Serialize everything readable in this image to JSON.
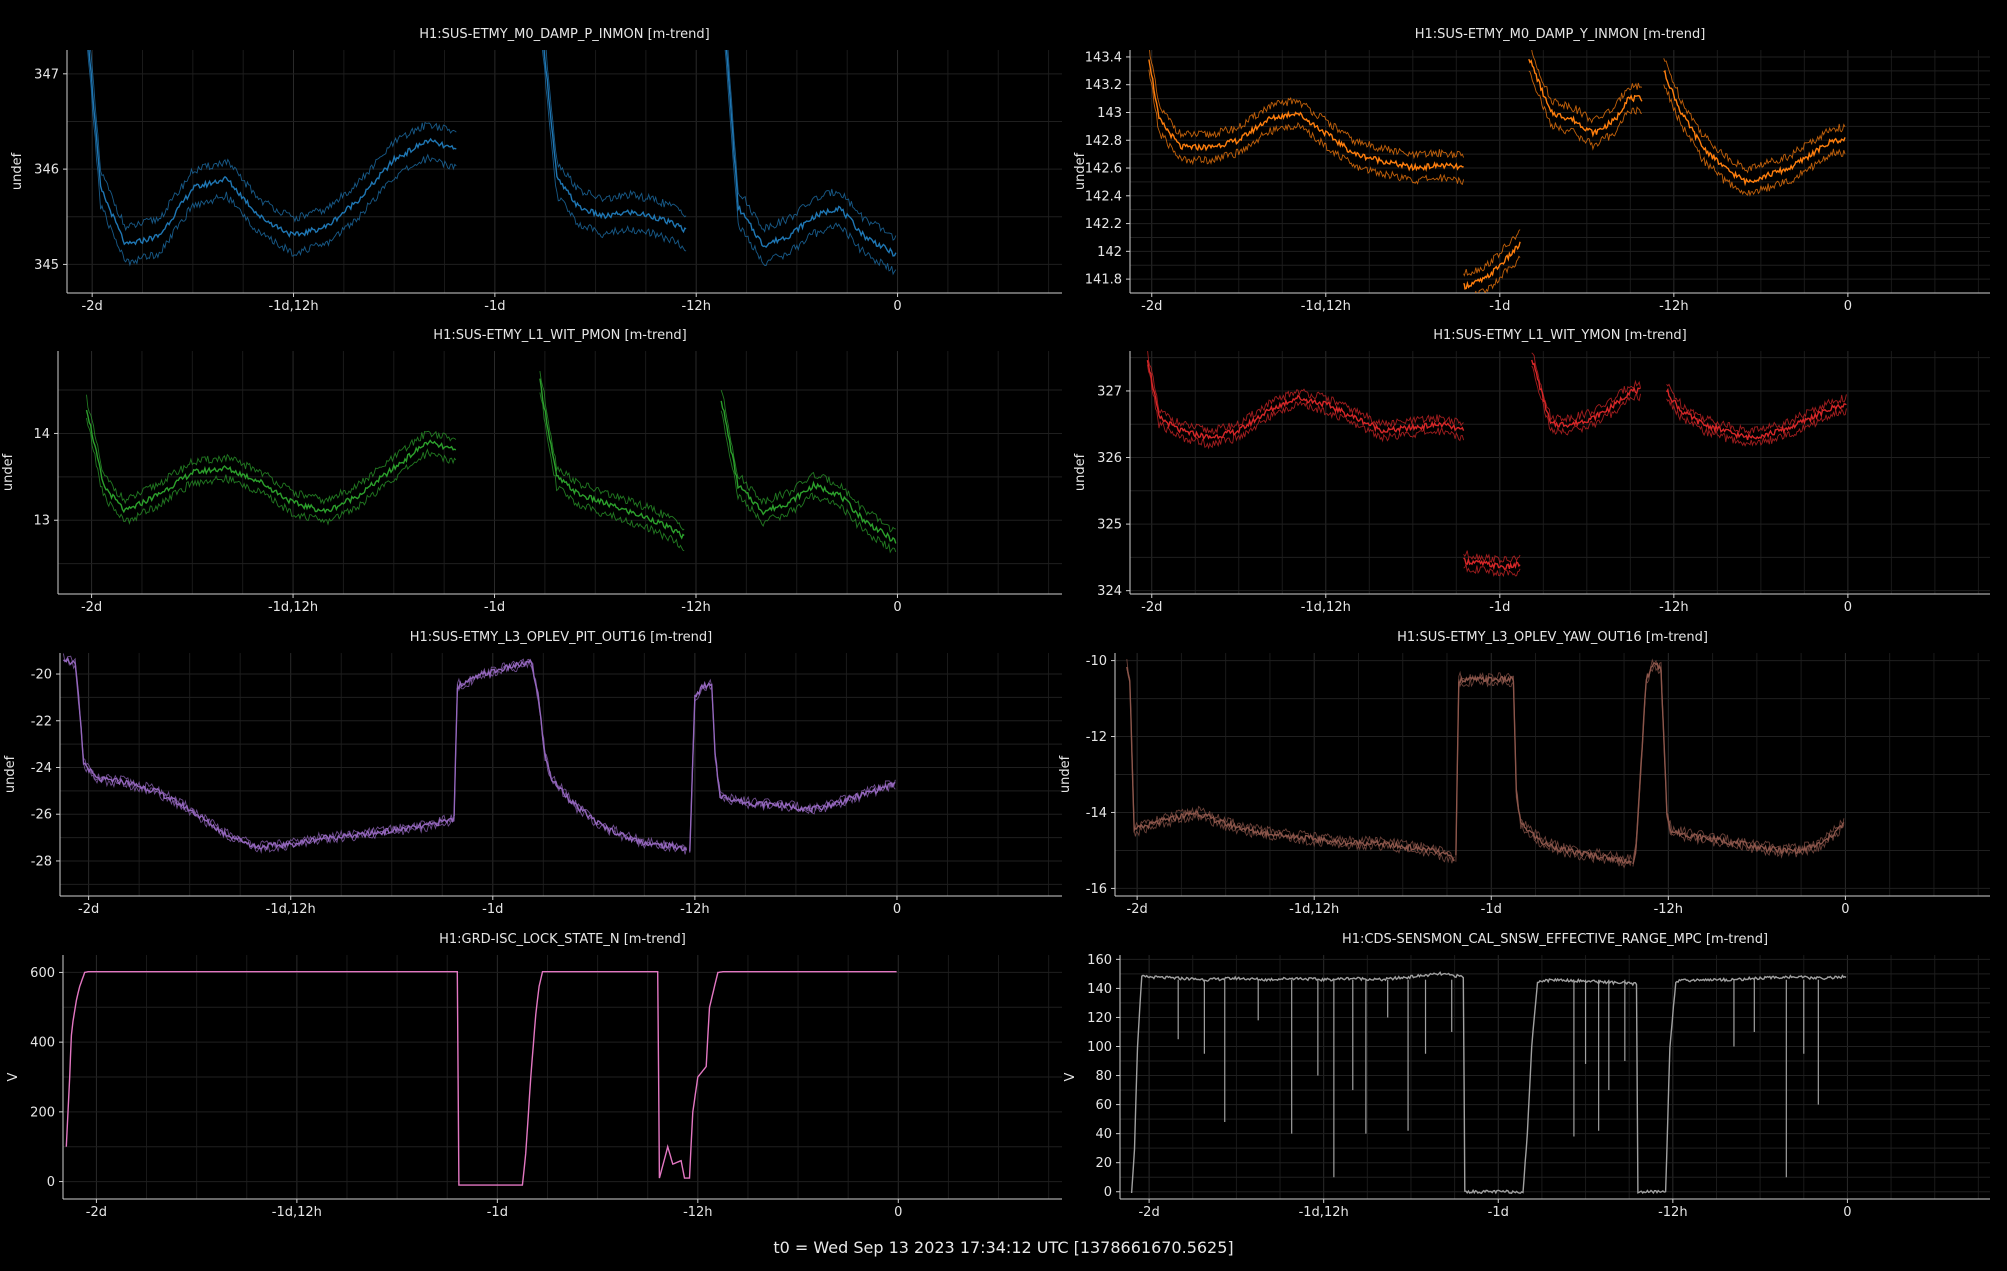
{
  "footer": "t0 = Wed Sep 13 2023 17:34:12 UTC [1378661670.5625]",
  "chart_data": [
    {
      "type": "line",
      "title": "H1:SUS-ETMY_M0_DAMP_P_INMON [m-trend]",
      "ylabel": "undef",
      "color": "#1f77b4",
      "ylim": [
        344.7,
        347.25
      ],
      "yticks": [
        345,
        346,
        347
      ],
      "x_hours_range": [
        -49.5,
        9.8
      ],
      "xtick_labels": [
        "-2d",
        "-1d,12h",
        "-1d",
        "-12h",
        "0"
      ],
      "xtick_hours": [
        -48,
        -36,
        -24,
        -12,
        0
      ],
      "band": 0.18,
      "segments": [
        {
          "x": [
            -48.3,
            -47.5,
            -46,
            -44,
            -42,
            -40,
            -38,
            -36,
            -34,
            -32,
            -30,
            -28,
            -26.3
          ],
          "y": [
            347.5,
            345.8,
            345.2,
            345.3,
            345.8,
            345.9,
            345.5,
            345.3,
            345.4,
            345.7,
            346.1,
            346.3,
            346.2
          ]
        },
        {
          "x": [
            -21.2,
            -20.3,
            -19,
            -17.5,
            -16,
            -14.5,
            -13,
            -12.6
          ],
          "y": [
            347.5,
            345.9,
            345.6,
            345.5,
            345.55,
            345.5,
            345.4,
            345.35
          ]
        },
        {
          "x": [
            -10.3,
            -9.5,
            -8,
            -6.5,
            -5,
            -3.5,
            -2,
            -0.1
          ],
          "y": [
            347.5,
            345.6,
            345.2,
            345.3,
            345.5,
            345.6,
            345.3,
            345.1
          ]
        }
      ]
    },
    {
      "type": "line",
      "title": "H1:SUS-ETMY_M0_DAMP_Y_INMON [m-trend]",
      "ylabel": "undef",
      "color": "#ff7f0e",
      "ylim": [
        141.7,
        143.45
      ],
      "yticks": [
        141.8,
        142,
        142.2,
        142.4,
        142.6,
        142.8,
        143,
        143.2,
        143.4
      ],
      "x_hours_range": [
        -49.5,
        9.8
      ],
      "xtick_labels": [
        "-2d",
        "-1d,12h",
        "-1d",
        "-12h",
        "0"
      ],
      "xtick_hours": [
        -48,
        -36,
        -24,
        -12,
        0
      ],
      "band": 0.09,
      "segments": [
        {
          "x": [
            -48.2,
            -47.5,
            -46,
            -44,
            -42,
            -40,
            -38,
            -36,
            -34,
            -32,
            -30,
            -28,
            -26.5
          ],
          "y": [
            143.4,
            142.95,
            142.75,
            142.75,
            142.8,
            142.95,
            143.0,
            142.85,
            142.7,
            142.65,
            142.6,
            142.62,
            142.6
          ]
        },
        {
          "x": [
            -26.5,
            -26.4,
            -25,
            -23.5,
            -22.6
          ],
          "y": [
            141.75,
            141.75,
            141.8,
            141.95,
            142.05
          ]
        },
        {
          "x": [
            -22.0,
            -20.5,
            -19,
            -17.5,
            -16,
            -15.2,
            -14.2
          ],
          "y": [
            143.4,
            143.0,
            142.95,
            142.85,
            142.95,
            143.1,
            143.1
          ]
        },
        {
          "x": [
            -12.7,
            -11.5,
            -10,
            -8.5,
            -7,
            -5.5,
            -4,
            -2.5,
            -1,
            -0.2
          ],
          "y": [
            143.3,
            143.0,
            142.75,
            142.6,
            142.5,
            142.55,
            142.6,
            142.7,
            142.8,
            142.8
          ]
        }
      ]
    },
    {
      "type": "line",
      "title": "H1:SUS-ETMY_L1_WIT_PMON [m-trend]",
      "ylabel": "undef",
      "color": "#2ca02c",
      "ylim": [
        12.15,
        14.95
      ],
      "yticks": [
        13,
        14
      ],
      "x_hours_range": [
        -50.0,
        9.8
      ],
      "xtick_labels": [
        "-2d",
        "-1d,12h",
        "-1d",
        "-12h",
        "0"
      ],
      "xtick_hours": [
        -48,
        -36,
        -24,
        -12,
        0
      ],
      "band": 0.12,
      "segments": [
        {
          "x": [
            -48.3,
            -47.3,
            -46,
            -44,
            -42,
            -40,
            -38,
            -36,
            -34,
            -32,
            -30,
            -28,
            -26.3
          ],
          "y": [
            14.3,
            13.4,
            13.1,
            13.3,
            13.55,
            13.6,
            13.45,
            13.2,
            13.1,
            13.3,
            13.6,
            13.9,
            13.8
          ]
        },
        {
          "x": [
            -21.3,
            -20.3,
            -19,
            -17.5,
            -16,
            -14.5,
            -13,
            -12.7
          ],
          "y": [
            14.6,
            13.5,
            13.3,
            13.2,
            13.1,
            13.0,
            12.85,
            12.8
          ]
        },
        {
          "x": [
            -10.5,
            -9.5,
            -8,
            -6.5,
            -5,
            -3.5,
            -2,
            -0.1
          ],
          "y": [
            14.4,
            13.4,
            13.1,
            13.2,
            13.4,
            13.3,
            13.0,
            12.75
          ]
        }
      ]
    },
    {
      "type": "line",
      "title": "H1:SUS-ETMY_L1_WIT_YMON [m-trend]",
      "ylabel": "undef",
      "color": "#d62728",
      "ylim": [
        323.95,
        327.6
      ],
      "yticks": [
        324,
        325,
        326,
        327
      ],
      "x_hours_range": [
        -49.5,
        9.8
      ],
      "xtick_labels": [
        "-2d",
        "-1d,12h",
        "-1d",
        "-12h",
        "0"
      ],
      "xtick_hours": [
        -48,
        -36,
        -24,
        -12,
        0
      ],
      "band": 0.1,
      "segments": [
        {
          "x": [
            -48.3,
            -47.5,
            -46,
            -44,
            -42,
            -40,
            -38,
            -36,
            -34,
            -32,
            -30,
            -28,
            -26.5
          ],
          "y": [
            327.5,
            326.6,
            326.4,
            326.3,
            326.4,
            326.7,
            326.9,
            326.8,
            326.6,
            326.4,
            326.45,
            326.5,
            326.4
          ]
        },
        {
          "x": [
            -26.5,
            -25,
            -23.5,
            -22.6
          ],
          "y": [
            324.45,
            324.4,
            324.35,
            324.4
          ]
        },
        {
          "x": [
            -21.8,
            -20.5,
            -19,
            -17.5,
            -16,
            -15,
            -14.3
          ],
          "y": [
            327.5,
            326.5,
            326.5,
            326.6,
            326.8,
            327.0,
            327.0
          ]
        },
        {
          "x": [
            -12.5,
            -11.5,
            -10,
            -8.5,
            -7,
            -5.5,
            -4,
            -2.5,
            -1,
            -0.1
          ],
          "y": [
            327.0,
            326.7,
            326.5,
            326.4,
            326.3,
            326.35,
            326.45,
            326.6,
            326.75,
            326.8
          ]
        }
      ]
    },
    {
      "type": "line",
      "title": "H1:SUS-ETMY_L3_OPLEV_PIT_OUT16 [m-trend]",
      "ylabel": "undef",
      "color": "#9467bd",
      "ylim": [
        -29.5,
        -19.1
      ],
      "yticks": [
        -28,
        -26,
        -24,
        -22,
        -20
      ],
      "x_hours_range": [
        -49.7,
        9.8
      ],
      "xtick_labels": [
        "-2d",
        "-1d,12h",
        "-1d",
        "-12h",
        "0"
      ],
      "xtick_hours": [
        -48,
        -36,
        -24,
        -12,
        0
      ],
      "band": 0.08,
      "segments": [
        {
          "x": [
            -49.5,
            -48.8,
            -48.6,
            -48.3,
            -47.5,
            -46,
            -44,
            -42,
            -40,
            -38,
            -36,
            -34,
            -32,
            -30,
            -28,
            -26.3
          ],
          "y": [
            -19.3,
            -19.6,
            -21.0,
            -23.8,
            -24.5,
            -24.6,
            -25.0,
            -25.8,
            -26.8,
            -27.4,
            -27.3,
            -27.0,
            -26.9,
            -26.7,
            -26.5,
            -26.2
          ]
        },
        {
          "x": [
            -26.3,
            -26.1,
            -24.5,
            -23,
            -21.7,
            -21.3,
            -20.9,
            -20.5,
            -19,
            -17.5,
            -16,
            -14.5,
            -13,
            -12.5
          ],
          "y": [
            -26.2,
            -20.5,
            -20.0,
            -19.7,
            -19.5,
            -21.0,
            -23.5,
            -24.5,
            -25.7,
            -26.5,
            -27.0,
            -27.3,
            -27.4,
            -27.5
          ]
        },
        {
          "x": [
            -12.3,
            -12.0,
            -11.5,
            -11.0,
            -10.8,
            -10.5,
            -9,
            -7,
            -5,
            -3,
            -1,
            -0.1
          ],
          "y": [
            -27.5,
            -21.0,
            -20.5,
            -20.5,
            -23.5,
            -25.2,
            -25.5,
            -25.6,
            -25.8,
            -25.4,
            -24.9,
            -24.7
          ]
        }
      ]
    },
    {
      "type": "line",
      "title": "H1:SUS-ETMY_L3_OPLEV_YAW_OUT16 [m-trend]",
      "ylabel": "undef",
      "color": "#8c564b",
      "ylim": [
        -16.2,
        -9.8
      ],
      "yticks": [
        -16,
        -14,
        -12,
        -10
      ],
      "x_hours_range": [
        -49.5,
        9.8
      ],
      "xtick_labels": [
        "-2d",
        "-1d,12h",
        "-1d",
        "-12h",
        "0"
      ],
      "xtick_hours": [
        -48,
        -36,
        -24,
        -12,
        0
      ],
      "band": 0.08,
      "segments": [
        {
          "x": [
            -48.7,
            -48.5,
            -48.2,
            -47.8,
            -46,
            -44,
            -42,
            -40,
            -38,
            -36,
            -34,
            -32,
            -30,
            -28,
            -26.5
          ],
          "y": [
            -10.1,
            -10.5,
            -14.5,
            -14.4,
            -14.2,
            -14.0,
            -14.3,
            -14.5,
            -14.6,
            -14.7,
            -14.8,
            -14.8,
            -14.9,
            -15.0,
            -15.2
          ]
        },
        {
          "x": [
            -26.4,
            -26.2,
            -25,
            -23.5,
            -22.5,
            -22.3,
            -22.0,
            -20.5,
            -19,
            -17.5,
            -16,
            -14.5
          ],
          "y": [
            -15.2,
            -10.5,
            -10.5,
            -10.5,
            -10.5,
            -13.5,
            -14.3,
            -14.8,
            -15.0,
            -15.1,
            -15.2,
            -15.3
          ]
        },
        {
          "x": [
            -14.4,
            -14.2,
            -13.5,
            -13.0,
            -12.5,
            -12.1,
            -11.8,
            -10.5,
            -9,
            -7.5,
            -6,
            -4.5,
            -3,
            -1.5,
            -0.1
          ],
          "y": [
            -15.3,
            -15.0,
            -10.5,
            -10.1,
            -10.2,
            -14.0,
            -14.5,
            -14.6,
            -14.7,
            -14.8,
            -14.9,
            -15.0,
            -15.0,
            -14.8,
            -14.3
          ]
        }
      ]
    },
    {
      "type": "line",
      "title": "H1:GRD-ISC_LOCK_STATE_N [m-trend]",
      "ylabel": "V",
      "color": "#e377c2",
      "ylim": [
        -50,
        650
      ],
      "yticks": [
        0,
        200,
        400,
        600
      ],
      "x_hours_range": [
        -50.0,
        9.8
      ],
      "xtick_labels": [
        "-2d",
        "-1d,12h",
        "-1d",
        "-12h",
        "0"
      ],
      "xtick_hours": [
        -48,
        -36,
        -24,
        -12,
        0
      ],
      "band": 0,
      "segments": [
        {
          "x": [
            -49.8,
            -49.6,
            -49.5,
            -49.4,
            -49.2,
            -49.0,
            -48.7,
            -48.5,
            -40,
            -30,
            -26.4,
            -26.3,
            -24.5,
            -23.0,
            -22.5,
            -22.3,
            -22.0,
            -21.7,
            -21.5,
            -21.3,
            -20.0,
            -16,
            -14.4,
            -14.3,
            -13.8,
            -13.5,
            -13.0,
            -12.8,
            -12.5,
            -12.3,
            -12.0,
            -11.5,
            -11.3,
            -11.0,
            -10.8,
            -10.5,
            -5,
            -0.1
          ],
          "y": [
            100,
            300,
            420,
            460,
            520,
            560,
            600,
            602,
            602,
            602,
            602,
            -10,
            -10,
            -10,
            -10,
            80,
            300,
            480,
            560,
            602,
            602,
            602,
            602,
            10,
            100,
            50,
            60,
            10,
            10,
            200,
            300,
            330,
            500,
            560,
            600,
            602,
            602,
            602
          ]
        }
      ]
    },
    {
      "type": "line",
      "title": "H1:CDS-SENSMON_CAL_SNSW_EFFECTIVE_RANGE_MPC [m-trend]",
      "ylabel": "V",
      "color": "#a0a0a0",
      "ylim": [
        -5,
        163
      ],
      "yticks": [
        0,
        20,
        40,
        60,
        80,
        100,
        120,
        140,
        160
      ],
      "x_hours_range": [
        -50.0,
        9.8
      ],
      "xtick_labels": [
        "-2d",
        "-1d,12h",
        "-1d",
        "-12h",
        "0"
      ],
      "xtick_hours": [
        -48,
        -36,
        -24,
        -12,
        0
      ],
      "band": 0,
      "segments": [
        {
          "x": [
            -49.2,
            -49.0,
            -48.8,
            -48.5,
            -46,
            -44,
            -42,
            -40,
            -38,
            -36,
            -34,
            -32,
            -30,
            -28,
            -26.4,
            -26.3,
            -24.5,
            -23.0,
            -22.3,
            -22.0,
            -21.7,
            -21.3,
            -20,
            -18,
            -16,
            -14.5,
            -14.4,
            -13.5,
            -12.6,
            -12.5,
            -12.2,
            -11.8,
            -10,
            -8,
            -6,
            -4,
            -2,
            -0.1
          ],
          "y": [
            0,
            30,
            100,
            148,
            147,
            146,
            147,
            146,
            147,
            146,
            147,
            146,
            148,
            150,
            148,
            0,
            0,
            0,
            0,
            40,
            100,
            145,
            146,
            145,
            144,
            143,
            0,
            0,
            0,
            0,
            100,
            145,
            146,
            146,
            147,
            148,
            147,
            148
          ]
        }
      ],
      "spikes": [
        {
          "x": -46.0,
          "y": 105
        },
        {
          "x": -44.2,
          "y": 95
        },
        {
          "x": -42.8,
          "y": 48
        },
        {
          "x": -40.5,
          "y": 118
        },
        {
          "x": -38.2,
          "y": 40
        },
        {
          "x": -36.4,
          "y": 80
        },
        {
          "x": -35.3,
          "y": 10
        },
        {
          "x": -34.0,
          "y": 70
        },
        {
          "x": -33.1,
          "y": 40
        },
        {
          "x": -31.6,
          "y": 120
        },
        {
          "x": -30.2,
          "y": 42
        },
        {
          "x": -29.0,
          "y": 95
        },
        {
          "x": -27.2,
          "y": 110
        },
        {
          "x": -18.8,
          "y": 38
        },
        {
          "x": -18.0,
          "y": 88
        },
        {
          "x": -17.1,
          "y": 42
        },
        {
          "x": -16.4,
          "y": 70
        },
        {
          "x": -15.3,
          "y": 90
        },
        {
          "x": -7.8,
          "y": 100
        },
        {
          "x": -6.4,
          "y": 110
        },
        {
          "x": -4.2,
          "y": 10
        },
        {
          "x": -3.0,
          "y": 95
        },
        {
          "x": -2.0,
          "y": 60
        }
      ]
    }
  ]
}
